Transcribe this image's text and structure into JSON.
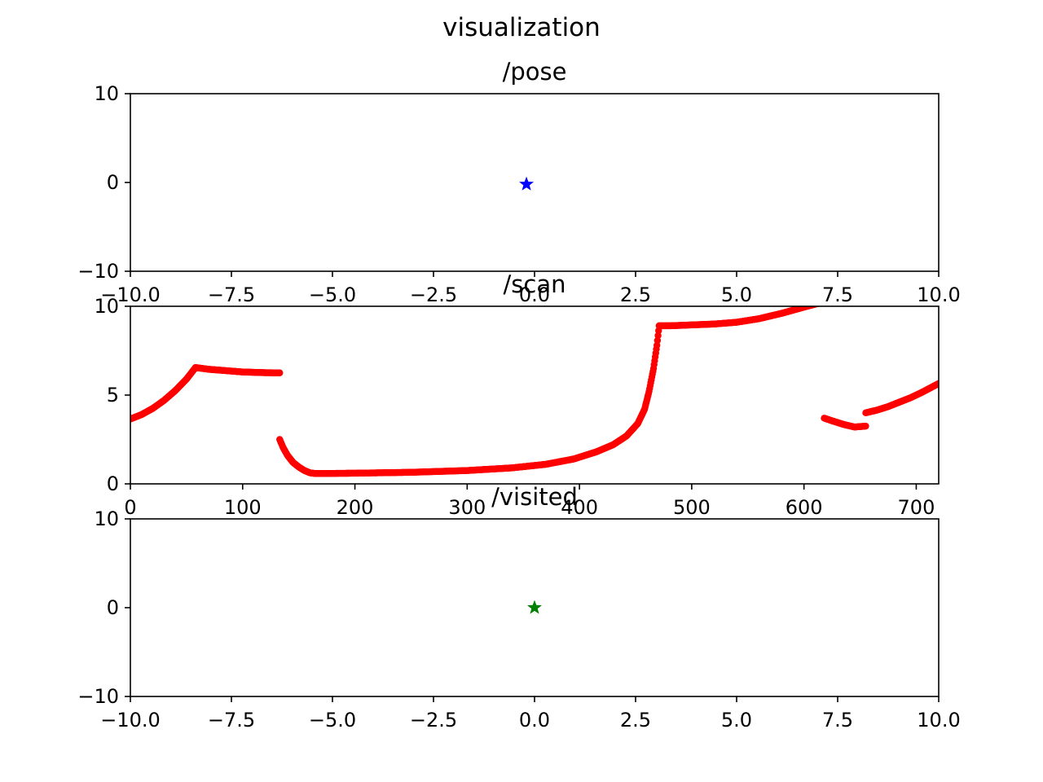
{
  "figure": {
    "title": "visualization"
  },
  "chart_data": [
    {
      "type": "scatter",
      "title": "/pose",
      "xlim": [
        -10,
        10
      ],
      "ylim": [
        -10,
        10
      ],
      "xticks": [
        "−10.0",
        "−7.5",
        "−5.0",
        "−2.5",
        "0.0",
        "2.5",
        "5.0",
        "7.5",
        "10.0"
      ],
      "yticks": [
        "−10",
        "0",
        "10"
      ],
      "grid": false,
      "marker": "star",
      "color": "#0000ff",
      "points": [
        {
          "x": -0.2,
          "y": -0.2
        }
      ]
    },
    {
      "type": "scatter",
      "title": "/scan",
      "xlim": [
        0,
        720
      ],
      "ylim": [
        0,
        10
      ],
      "xticks": [
        "0",
        "100",
        "200",
        "300",
        "400",
        "500",
        "600",
        "700"
      ],
      "yticks": [
        "0",
        "5",
        "10"
      ],
      "grid": false,
      "marker": "circle",
      "color": "#ff0000",
      "segments": [
        {
          "x": [
            0,
            10,
            20,
            30,
            40,
            50,
            58
          ],
          "y": [
            3.65,
            3.9,
            4.25,
            4.7,
            5.25,
            5.9,
            6.55
          ]
        },
        {
          "x": [
            58,
            70,
            80,
            90,
            100,
            110,
            120,
            133
          ],
          "y": [
            6.55,
            6.45,
            6.4,
            6.35,
            6.3,
            6.28,
            6.26,
            6.25
          ]
        },
        {
          "x": [
            133,
            136,
            140,
            145,
            150,
            155,
            160,
            165
          ],
          "y": [
            2.5,
            2.05,
            1.6,
            1.2,
            0.95,
            0.75,
            0.62,
            0.58
          ]
        },
        {
          "x": [
            165,
            200,
            250,
            300,
            340,
            370,
            395,
            415,
            430,
            442,
            452,
            458,
            462,
            466,
            469,
            471
          ],
          "y": [
            0.58,
            0.6,
            0.65,
            0.75,
            0.9,
            1.1,
            1.4,
            1.8,
            2.2,
            2.7,
            3.4,
            4.2,
            5.2,
            6.5,
            7.8,
            8.9
          ]
        },
        {
          "x": [
            471,
            480,
            500,
            520,
            540,
            560,
            580,
            600,
            615
          ],
          "y": [
            8.9,
            8.9,
            8.95,
            9.0,
            9.1,
            9.3,
            9.6,
            9.95,
            10.2
          ]
        },
        {
          "x": [
            618,
            625,
            635,
            645,
            655
          ],
          "y": [
            3.7,
            3.55,
            3.35,
            3.2,
            3.25
          ]
        },
        {
          "x": [
            655,
            665,
            675,
            685,
            695,
            705,
            720
          ],
          "y": [
            4.0,
            4.15,
            4.35,
            4.6,
            4.85,
            5.15,
            5.65
          ]
        }
      ]
    },
    {
      "type": "scatter",
      "title": "/visited",
      "xlim": [
        -10,
        10
      ],
      "ylim": [
        -10,
        10
      ],
      "xticks": [
        "−10.0",
        "−7.5",
        "−5.0",
        "−2.5",
        "0.0",
        "2.5",
        "5.0",
        "7.5",
        "10.0"
      ],
      "yticks": [
        "−10",
        "0",
        "10"
      ],
      "grid": false,
      "marker": "star",
      "color": "#008000",
      "points": [
        {
          "x": 0.0,
          "y": 0.0
        }
      ]
    }
  ]
}
